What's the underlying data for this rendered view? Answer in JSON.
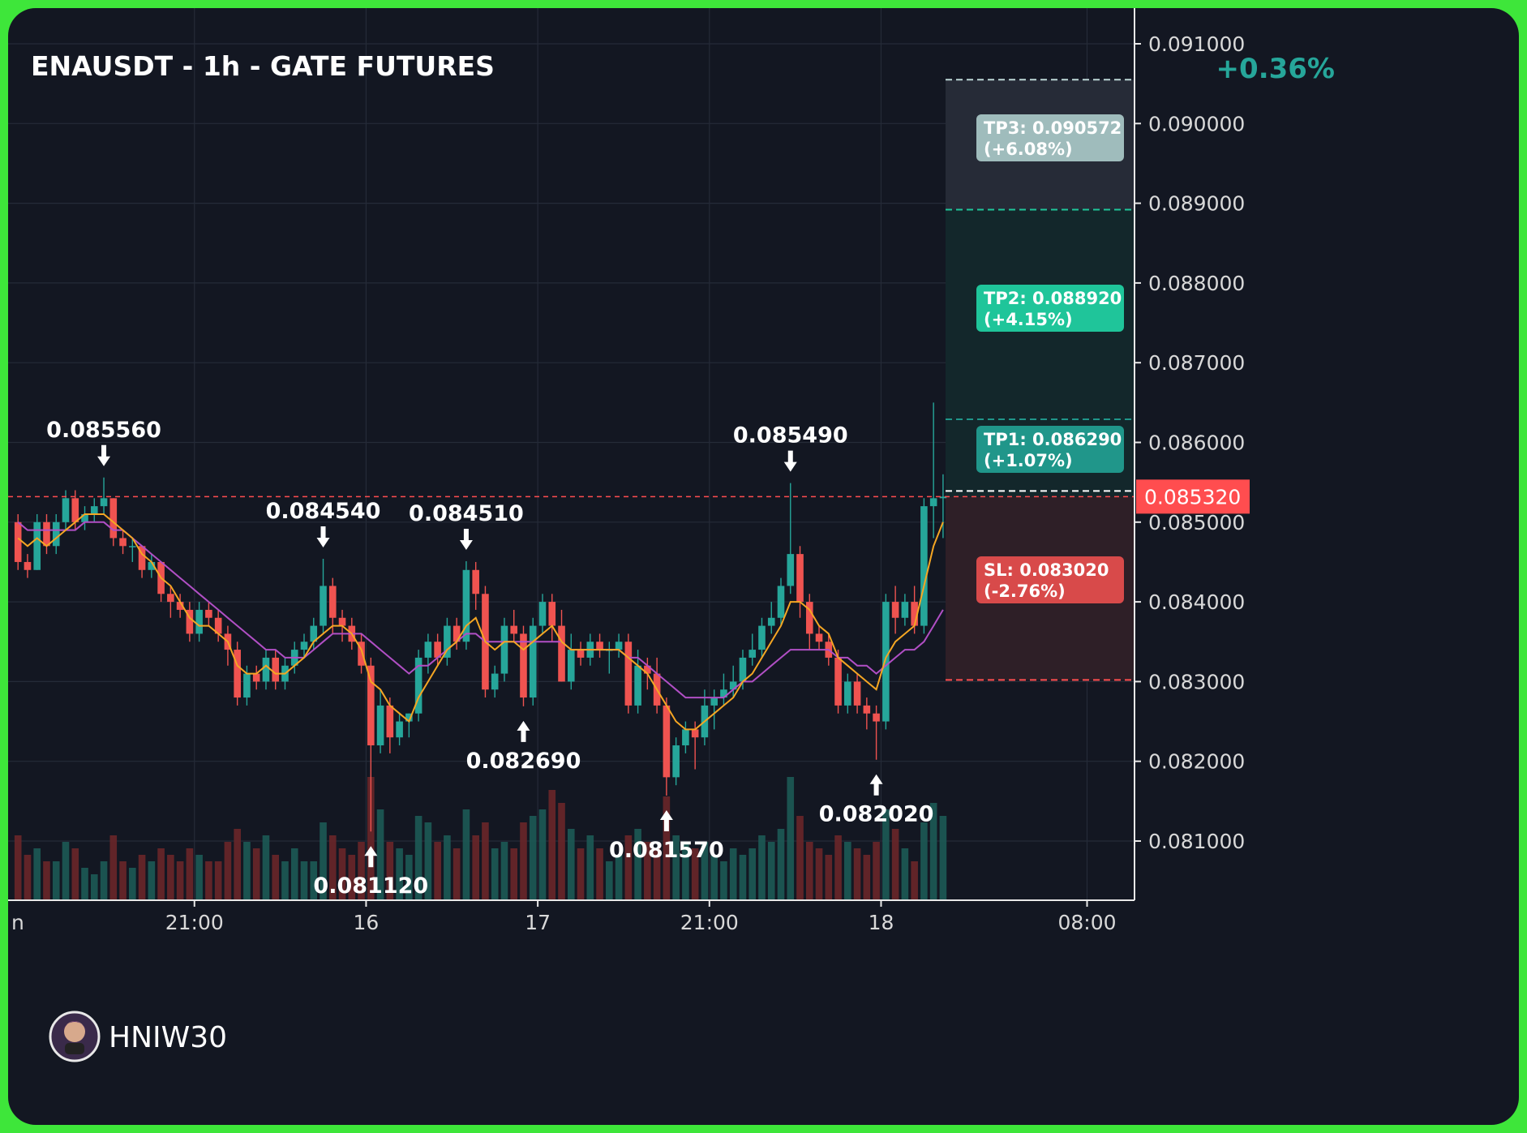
{
  "title": "ENAUSDT - 1h - GATE FUTURES",
  "change": "+0.36%",
  "watermark": "HNIW30",
  "colors": {
    "bg": "#131722",
    "up": "#26a69a",
    "down": "#ef5350",
    "ma_fast": "#f5a623",
    "ma_slow": "#b14fc5",
    "stop": "#ff4d4f"
  },
  "chart_data": {
    "type": "candlestick",
    "price_axis": {
      "range": [
        0.0801,
        0.0913
      ],
      "ticks": [
        "0.091000",
        "0.090000",
        "0.089000",
        "0.088000",
        "0.087000",
        "0.086000",
        "0.085000",
        "0.084000",
        "0.083000",
        "0.082000",
        "0.081000"
      ],
      "current_price": "0.085320"
    },
    "time_axis": {
      "labels": [
        {
          "text": "n",
          "index": -8
        },
        {
          "text": "21:00",
          "index": 9
        },
        {
          "text": "16",
          "index": 18
        },
        {
          "text": "17",
          "index": 27
        },
        {
          "text": "21:00",
          "index": 36
        },
        {
          "text": "18",
          "index": 45
        },
        {
          "text": "08:00",
          "index": 55.8
        }
      ]
    },
    "candles": [
      [
        0.085,
        0.0851,
        0.0844,
        0.0845,
        0.5
      ],
      [
        0.0845,
        0.0846,
        0.0843,
        0.0844,
        0.35
      ],
      [
        0.0844,
        0.0851,
        0.0844,
        0.085,
        0.4
      ],
      [
        0.085,
        0.0851,
        0.0846,
        0.0847,
        0.3
      ],
      [
        0.0847,
        0.0851,
        0.0846,
        0.085,
        0.3
      ],
      [
        0.085,
        0.0854,
        0.0849,
        0.0853,
        0.45
      ],
      [
        0.0853,
        0.0854,
        0.0849,
        0.085,
        0.4
      ],
      [
        0.085,
        0.0852,
        0.0849,
        0.0851,
        0.25
      ],
      [
        0.0851,
        0.0853,
        0.085,
        0.0852,
        0.2
      ],
      [
        0.0852,
        0.08556,
        0.0851,
        0.0853,
        0.3
      ],
      [
        0.0853,
        0.0853,
        0.0847,
        0.0848,
        0.5
      ],
      [
        0.0848,
        0.0849,
        0.0846,
        0.0847,
        0.3
      ],
      [
        0.0847,
        0.0848,
        0.0845,
        0.0847,
        0.25
      ],
      [
        0.0847,
        0.0847,
        0.0843,
        0.0844,
        0.35
      ],
      [
        0.0844,
        0.0846,
        0.0843,
        0.0845,
        0.3
      ],
      [
        0.0845,
        0.0845,
        0.084,
        0.0841,
        0.4
      ],
      [
        0.0841,
        0.0842,
        0.0838,
        0.084,
        0.35
      ],
      [
        0.084,
        0.0841,
        0.0838,
        0.0839,
        0.3
      ],
      [
        0.0839,
        0.084,
        0.0835,
        0.0836,
        0.4
      ],
      [
        0.0836,
        0.084,
        0.0835,
        0.0839,
        0.35
      ],
      [
        0.0839,
        0.084,
        0.0837,
        0.0838,
        0.3
      ],
      [
        0.0838,
        0.0839,
        0.0835,
        0.0836,
        0.3
      ],
      [
        0.0836,
        0.0837,
        0.0832,
        0.0834,
        0.45
      ],
      [
        0.0834,
        0.0835,
        0.0827,
        0.0828,
        0.55
      ],
      [
        0.0828,
        0.0832,
        0.0827,
        0.0831,
        0.45
      ],
      [
        0.0831,
        0.0832,
        0.0829,
        0.083,
        0.4
      ],
      [
        0.083,
        0.0834,
        0.0829,
        0.0833,
        0.5
      ],
      [
        0.0833,
        0.0834,
        0.0829,
        0.083,
        0.35
      ],
      [
        0.083,
        0.0833,
        0.0829,
        0.0832,
        0.3
      ],
      [
        0.0832,
        0.0835,
        0.0831,
        0.0834,
        0.4
      ],
      [
        0.0834,
        0.0836,
        0.0833,
        0.0835,
        0.3
      ],
      [
        0.0835,
        0.0838,
        0.0834,
        0.0837,
        0.3
      ],
      [
        0.0837,
        0.08454,
        0.0836,
        0.0842,
        0.6
      ],
      [
        0.0842,
        0.0843,
        0.0836,
        0.0838,
        0.5
      ],
      [
        0.0838,
        0.0839,
        0.0835,
        0.0837,
        0.4
      ],
      [
        0.0837,
        0.0838,
        0.0834,
        0.0835,
        0.35
      ],
      [
        0.0835,
        0.0836,
        0.0831,
        0.0832,
        0.45
      ],
      [
        0.0832,
        0.0833,
        0.08112,
        0.0822,
        0.95
      ],
      [
        0.0822,
        0.0829,
        0.0821,
        0.0827,
        0.7
      ],
      [
        0.0827,
        0.0828,
        0.0821,
        0.0823,
        0.45
      ],
      [
        0.0823,
        0.0826,
        0.0822,
        0.0825,
        0.4
      ],
      [
        0.0825,
        0.0826,
        0.0823,
        0.0826,
        0.35
      ],
      [
        0.0826,
        0.0834,
        0.0825,
        0.0833,
        0.65
      ],
      [
        0.0833,
        0.0836,
        0.0831,
        0.0835,
        0.6
      ],
      [
        0.0835,
        0.0836,
        0.0832,
        0.0833,
        0.45
      ],
      [
        0.0833,
        0.0838,
        0.0832,
        0.0837,
        0.5
      ],
      [
        0.0837,
        0.0838,
        0.0834,
        0.0835,
        0.4
      ],
      [
        0.0835,
        0.08451,
        0.0834,
        0.0844,
        0.7
      ],
      [
        0.0844,
        0.0845,
        0.0839,
        0.0841,
        0.5
      ],
      [
        0.0841,
        0.0842,
        0.0828,
        0.0829,
        0.6
      ],
      [
        0.0829,
        0.0832,
        0.0828,
        0.0831,
        0.4
      ],
      [
        0.0831,
        0.0838,
        0.083,
        0.0837,
        0.45
      ],
      [
        0.0837,
        0.0839,
        0.0835,
        0.0836,
        0.4
      ],
      [
        0.0836,
        0.0837,
        0.08269,
        0.0828,
        0.6
      ],
      [
        0.0828,
        0.0838,
        0.0827,
        0.0837,
        0.65
      ],
      [
        0.0837,
        0.0841,
        0.0836,
        0.084,
        0.7
      ],
      [
        0.084,
        0.0841,
        0.0835,
        0.0837,
        0.85
      ],
      [
        0.0837,
        0.0839,
        0.083,
        0.083,
        0.75
      ],
      [
        0.083,
        0.0836,
        0.0829,
        0.0834,
        0.55
      ],
      [
        0.0834,
        0.0835,
        0.0832,
        0.0833,
        0.4
      ],
      [
        0.0833,
        0.0836,
        0.0832,
        0.0835,
        0.5
      ],
      [
        0.0835,
        0.0836,
        0.0833,
        0.0834,
        0.4
      ],
      [
        0.0834,
        0.0835,
        0.0831,
        0.0834,
        0.3
      ],
      [
        0.0834,
        0.0836,
        0.0833,
        0.0835,
        0.35
      ],
      [
        0.0835,
        0.0836,
        0.0826,
        0.0827,
        0.5
      ],
      [
        0.0827,
        0.0834,
        0.0826,
        0.0832,
        0.55
      ],
      [
        0.0832,
        0.0833,
        0.0829,
        0.0831,
        0.45
      ],
      [
        0.0831,
        0.0833,
        0.0826,
        0.0827,
        0.4
      ],
      [
        0.0827,
        0.0828,
        0.08157,
        0.0818,
        0.8
      ],
      [
        0.0818,
        0.0823,
        0.0817,
        0.0822,
        0.5
      ],
      [
        0.0822,
        0.0825,
        0.0821,
        0.0824,
        0.45
      ],
      [
        0.0824,
        0.0825,
        0.0819,
        0.0823,
        0.4
      ],
      [
        0.0823,
        0.0829,
        0.0822,
        0.0827,
        0.45
      ],
      [
        0.0827,
        0.0829,
        0.0824,
        0.0828,
        0.35
      ],
      [
        0.0828,
        0.0831,
        0.0827,
        0.0829,
        0.3
      ],
      [
        0.0829,
        0.0832,
        0.0828,
        0.083,
        0.4
      ],
      [
        0.083,
        0.0834,
        0.0829,
        0.0833,
        0.35
      ],
      [
        0.0833,
        0.0836,
        0.0832,
        0.0834,
        0.4
      ],
      [
        0.0834,
        0.0838,
        0.0833,
        0.0837,
        0.5
      ],
      [
        0.0837,
        0.084,
        0.0836,
        0.0838,
        0.45
      ],
      [
        0.0838,
        0.0843,
        0.0837,
        0.0842,
        0.55
      ],
      [
        0.0842,
        0.08549,
        0.0841,
        0.0846,
        0.95
      ],
      [
        0.0846,
        0.0847,
        0.0838,
        0.084,
        0.65
      ],
      [
        0.084,
        0.0841,
        0.0834,
        0.0836,
        0.45
      ],
      [
        0.0836,
        0.0837,
        0.0834,
        0.0835,
        0.4
      ],
      [
        0.0835,
        0.0836,
        0.0832,
        0.0833,
        0.35
      ],
      [
        0.0833,
        0.0834,
        0.0826,
        0.0827,
        0.5
      ],
      [
        0.0827,
        0.0831,
        0.0826,
        0.083,
        0.45
      ],
      [
        0.083,
        0.0831,
        0.0826,
        0.0827,
        0.4
      ],
      [
        0.0827,
        0.0828,
        0.0824,
        0.0826,
        0.35
      ],
      [
        0.0826,
        0.0827,
        0.08202,
        0.0825,
        0.45
      ],
      [
        0.0825,
        0.0841,
        0.0824,
        0.084,
        0.7
      ],
      [
        0.084,
        0.0842,
        0.0836,
        0.0838,
        0.55
      ],
      [
        0.0838,
        0.0841,
        0.0837,
        0.084,
        0.4
      ],
      [
        0.084,
        0.0842,
        0.0836,
        0.0837,
        0.3
      ],
      [
        0.0837,
        0.0853,
        0.0836,
        0.0852,
        0.6
      ],
      [
        0.0852,
        0.0865,
        0.0848,
        0.0853,
        0.75
      ],
      [
        0.0853,
        0.0856,
        0.0848,
        0.08532,
        0.65
      ]
    ],
    "ma_fast": [
      0.0848,
      0.0847,
      0.0848,
      0.0847,
      0.0848,
      0.0849,
      0.085,
      0.0851,
      0.0851,
      0.0851,
      0.085,
      0.0849,
      0.0848,
      0.0846,
      0.0845,
      0.0843,
      0.0842,
      0.084,
      0.0838,
      0.0837,
      0.0837,
      0.0836,
      0.0835,
      0.0832,
      0.0831,
      0.0831,
      0.0832,
      0.0831,
      0.0831,
      0.0832,
      0.0833,
      0.0835,
      0.0836,
      0.0837,
      0.0837,
      0.0836,
      0.0834,
      0.083,
      0.0829,
      0.0827,
      0.0826,
      0.0825,
      0.0828,
      0.083,
      0.0832,
      0.0834,
      0.0835,
      0.0837,
      0.0838,
      0.0835,
      0.0834,
      0.0835,
      0.0835,
      0.0834,
      0.0835,
      0.0836,
      0.0837,
      0.0835,
      0.0834,
      0.0834,
      0.0834,
      0.0834,
      0.0834,
      0.0834,
      0.0833,
      0.0832,
      0.0831,
      0.0829,
      0.0827,
      0.0825,
      0.0824,
      0.0824,
      0.0825,
      0.0826,
      0.0827,
      0.0828,
      0.083,
      0.0831,
      0.0833,
      0.0835,
      0.0837,
      0.084,
      0.084,
      0.0839,
      0.0837,
      0.0836,
      0.0833,
      0.0832,
      0.0831,
      0.083,
      0.0829,
      0.0833,
      0.0835,
      0.0836,
      0.0837,
      0.0842,
      0.0847,
      0.085
    ],
    "ma_slow": [
      0.085,
      0.0849,
      0.0849,
      0.0849,
      0.0849,
      0.0849,
      0.0849,
      0.085,
      0.085,
      0.085,
      0.0849,
      0.0849,
      0.0848,
      0.0847,
      0.0846,
      0.0845,
      0.0844,
      0.0843,
      0.0842,
      0.0841,
      0.084,
      0.0839,
      0.0838,
      0.0837,
      0.0836,
      0.0835,
      0.0834,
      0.0834,
      0.0833,
      0.0833,
      0.0833,
      0.0834,
      0.0835,
      0.0836,
      0.0836,
      0.0836,
      0.0836,
      0.0835,
      0.0834,
      0.0833,
      0.0832,
      0.0831,
      0.0832,
      0.0832,
      0.0833,
      0.0834,
      0.0835,
      0.0836,
      0.0836,
      0.0835,
      0.0835,
      0.0835,
      0.0835,
      0.0835,
      0.0835,
      0.0835,
      0.0835,
      0.0835,
      0.0834,
      0.0834,
      0.0834,
      0.0834,
      0.0834,
      0.0834,
      0.0833,
      0.0833,
      0.0832,
      0.0831,
      0.083,
      0.0829,
      0.0828,
      0.0828,
      0.0828,
      0.0828,
      0.0828,
      0.0829,
      0.083,
      0.083,
      0.0831,
      0.0832,
      0.0833,
      0.0834,
      0.0834,
      0.0834,
      0.0834,
      0.0834,
      0.0833,
      0.0833,
      0.0832,
      0.0832,
      0.0831,
      0.0832,
      0.0833,
      0.0834,
      0.0834,
      0.0835,
      0.0837,
      0.0839
    ],
    "annotations": [
      {
        "text": "0.085560",
        "price": 0.08556,
        "index": 9,
        "type": "high"
      },
      {
        "text": "0.084540",
        "price": 0.08454,
        "index": 32,
        "type": "high"
      },
      {
        "text": "0.084510",
        "price": 0.08451,
        "index": 47,
        "type": "high"
      },
      {
        "text": "0.085490",
        "price": 0.08549,
        "index": 81,
        "type": "high"
      },
      {
        "text": "0.081120",
        "price": 0.08112,
        "index": 37,
        "type": "low"
      },
      {
        "text": "0.082690",
        "price": 0.08269,
        "index": 53,
        "type": "low"
      },
      {
        "text": "0.081570",
        "price": 0.08157,
        "index": 68,
        "type": "low"
      },
      {
        "text": "0.082020",
        "price": 0.08202,
        "index": 90,
        "type": "low"
      }
    ],
    "levels": {
      "entry": 0.08532,
      "tp1": {
        "price": 0.08629,
        "label": "TP1: 0.086290",
        "pct": "(+1.07%)",
        "color": "#20968a"
      },
      "tp2": {
        "price": 0.08892,
        "label": "TP2: 0.088920",
        "pct": "(+4.15%)",
        "color": "#1fc59a"
      },
      "tp3": {
        "price": 0.090572,
        "label": "TP3: 0.090572",
        "pct": "(+6.08%)",
        "color": "#9fbcbc"
      },
      "sl": {
        "price": 0.08302,
        "label": "SL: 0.083020",
        "pct": "(-2.76%)",
        "color": "#d84a4a"
      },
      "top": 0.09055
    }
  }
}
